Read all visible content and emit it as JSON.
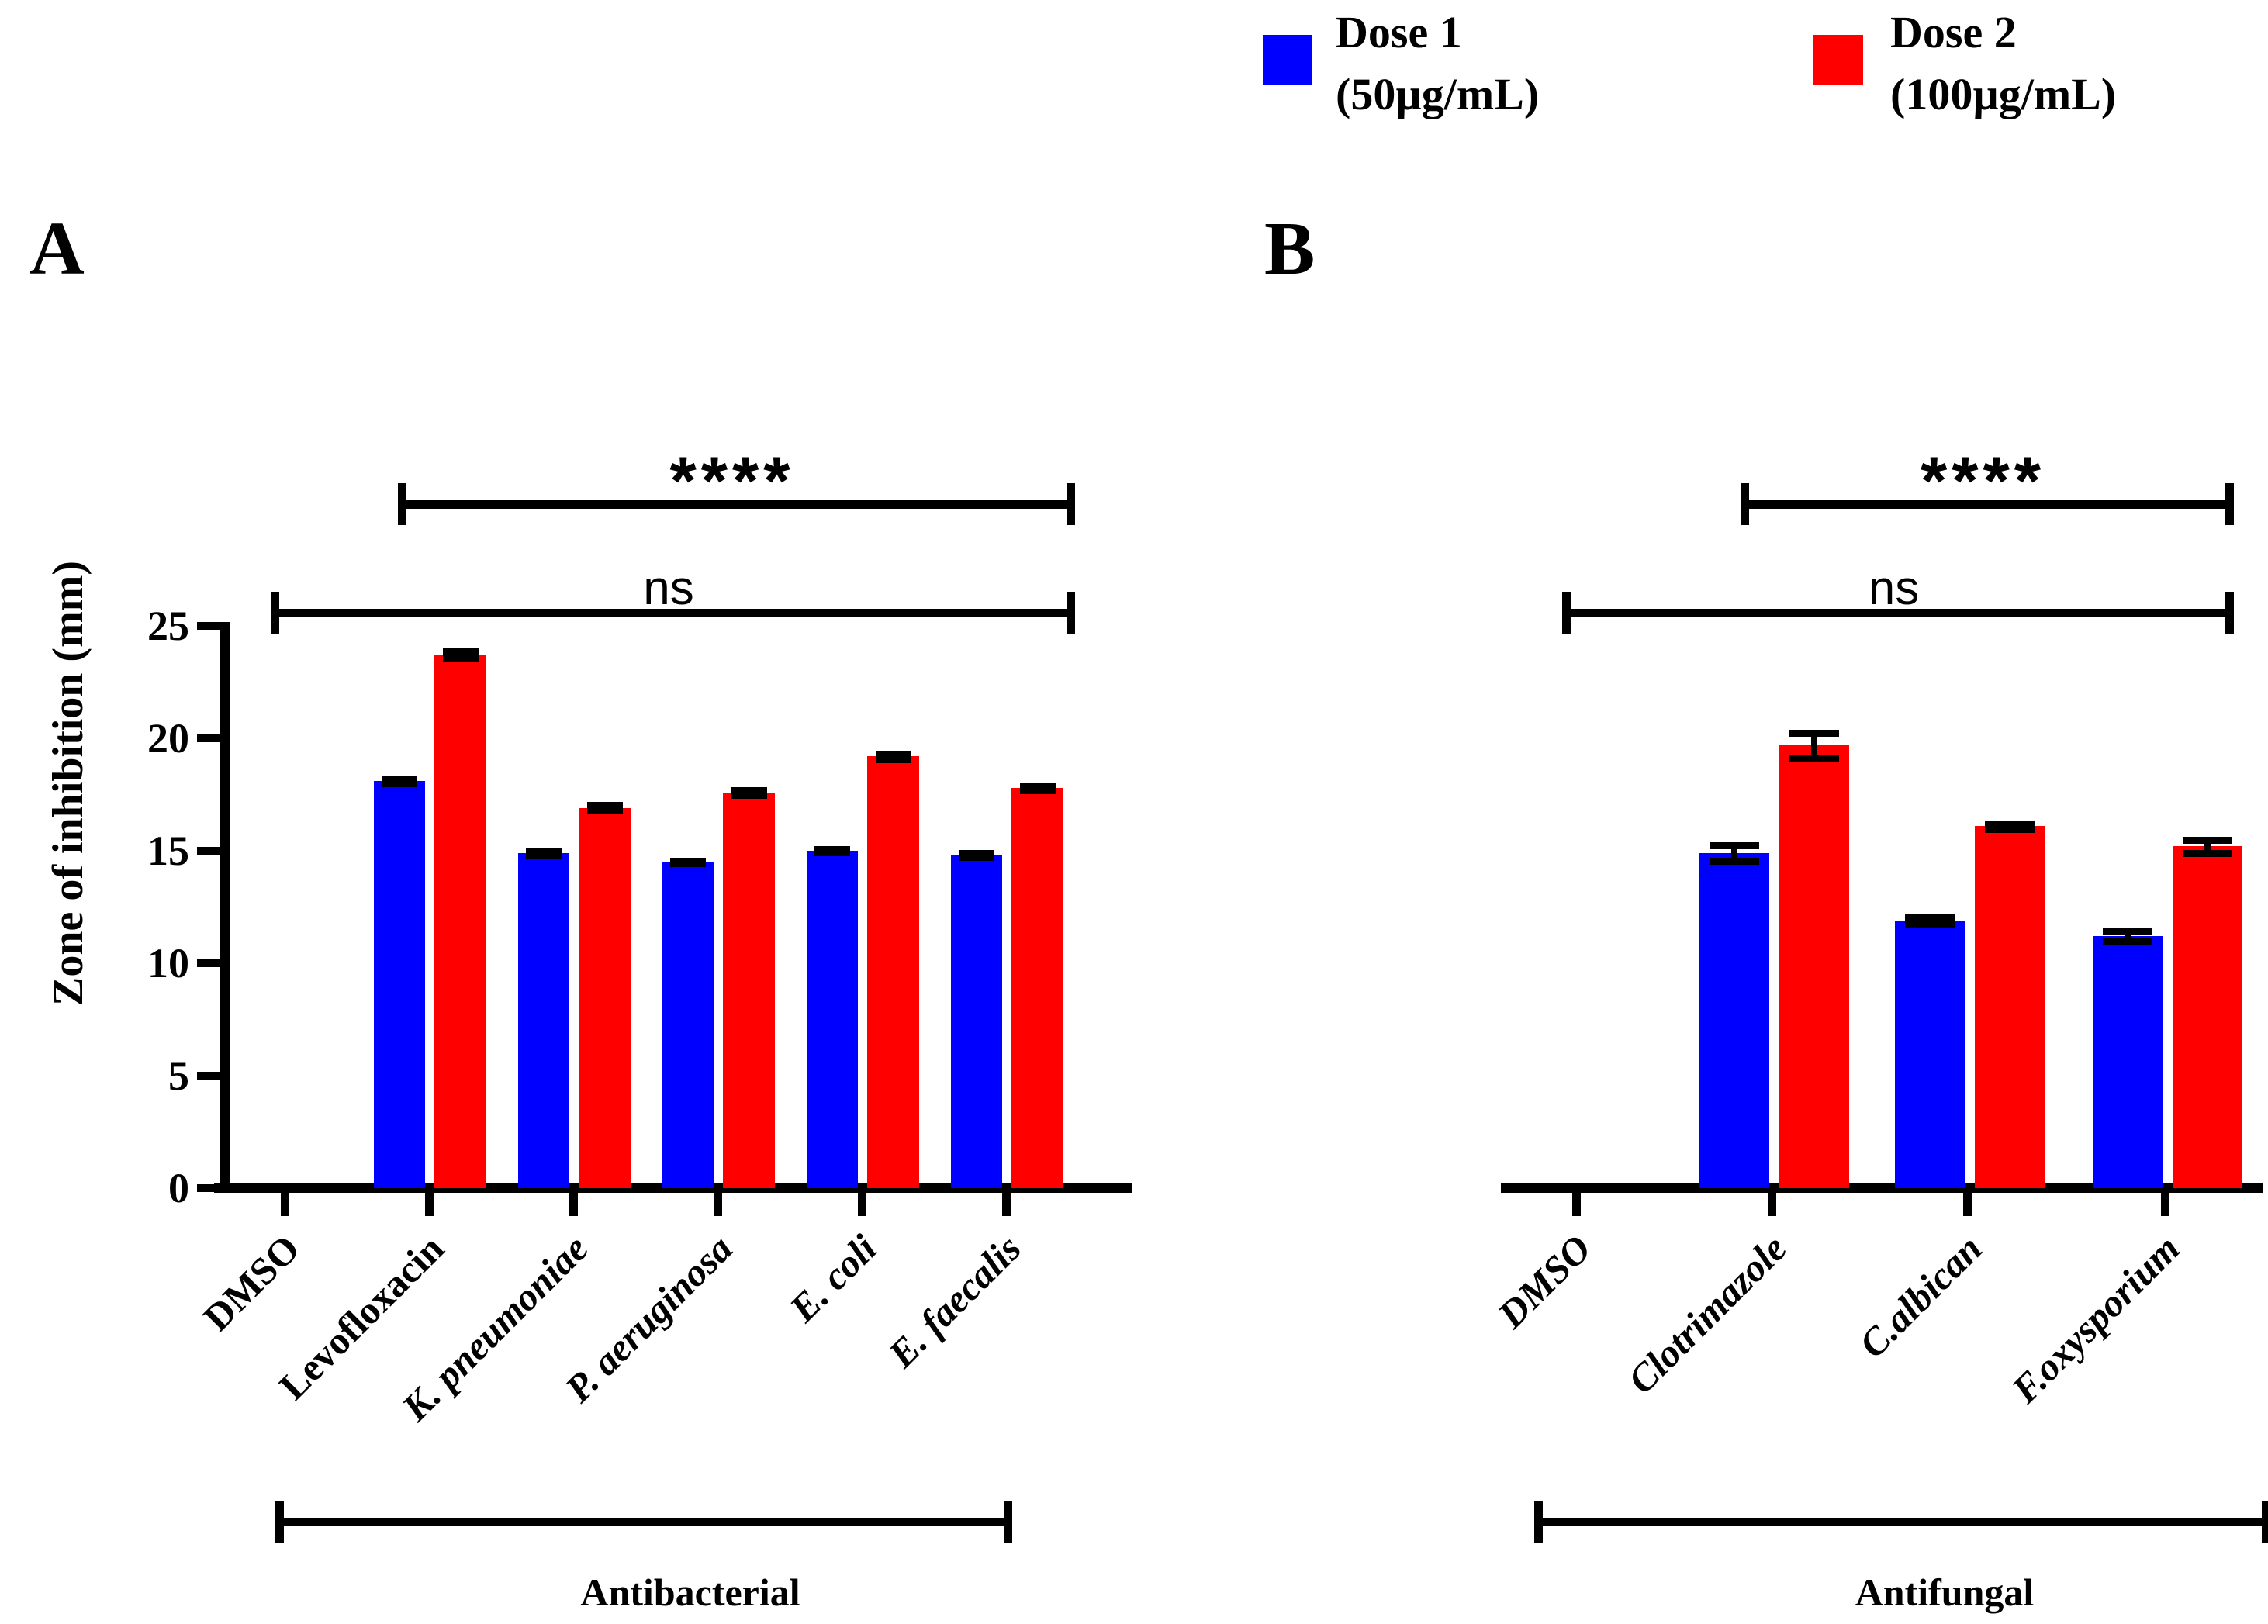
{
  "figure": {
    "background": "#ffffff",
    "axis_color": "#000000",
    "error_bar_color": "#000000"
  },
  "legend": {
    "items": [
      {
        "swatch_color": "#0000FF",
        "label_line1": "Dose 1",
        "label_line2": "(50µg/mL)"
      },
      {
        "swatch_color": "#FF0000",
        "label_line1": "Dose 2",
        "label_line2": "(100µg/mL)"
      }
    ]
  },
  "chart_data": [
    {
      "panel_label": "A",
      "type": "bar",
      "title": "",
      "xlabel": "",
      "ylabel": "Zone of inhibition (mm)",
      "ylim": [
        0,
        25
      ],
      "y_ticks": [
        0,
        5,
        10,
        15,
        20,
        25
      ],
      "y_axis_visible": true,
      "grid": false,
      "legend_position": "top",
      "categories": [
        {
          "label": "DMSO",
          "italic": false
        },
        {
          "label": "Levofloxacin",
          "italic": false
        },
        {
          "label": "K. pneumoniae",
          "italic": true
        },
        {
          "label": "P. aeruginosa",
          "italic": true
        },
        {
          "label": "E. coli",
          "italic": true
        },
        {
          "label": "E. faecalis",
          "italic": true
        }
      ],
      "series": [
        {
          "name": "Dose 1 (50µg/mL)",
          "color": "#0000FF",
          "values": [
            0,
            18.1,
            14.9,
            14.5,
            15.0,
            14.8
          ],
          "errors": [
            0,
            0.1,
            0.08,
            0.06,
            0.08,
            0.08
          ]
        },
        {
          "name": "Dose 2 (100µg/mL)",
          "color": "#FF0000",
          "values": [
            0,
            23.7,
            16.9,
            17.6,
            19.2,
            17.8
          ],
          "errors": [
            0,
            0.15,
            0.12,
            0.1,
            0.12,
            0.1
          ]
        }
      ],
      "significance": [
        {
          "label": "****",
          "from": 1,
          "to": 5
        },
        {
          "label": "ns",
          "from": 0,
          "to": 5
        }
      ],
      "group_label": "Antibacterial"
    },
    {
      "panel_label": "B",
      "type": "bar",
      "title": "",
      "xlabel": "",
      "ylabel": "",
      "ylim": [
        0,
        25
      ],
      "y_ticks": [],
      "y_axis_visible": false,
      "grid": false,
      "legend_position": "top",
      "categories": [
        {
          "label": "DMSO",
          "italic": true
        },
        {
          "label": "Clotrimazole",
          "italic": true
        },
        {
          "label": "C.albican",
          "italic": true
        },
        {
          "label": "F.oxysporium",
          "italic": true
        }
      ],
      "series": [
        {
          "name": "Dose 1 (50µg/mL)",
          "color": "#0000FF",
          "values": [
            0,
            14.9,
            11.9,
            11.2
          ],
          "errors": [
            0,
            0.35,
            0.15,
            0.25
          ]
        },
        {
          "name": "Dose 2 (100µg/mL)",
          "color": "#FF0000",
          "values": [
            0,
            19.7,
            16.1,
            15.2
          ],
          "errors": [
            0,
            0.55,
            0.12,
            0.3
          ]
        }
      ],
      "significance": [
        {
          "label": "****",
          "from": 1,
          "to": 3
        },
        {
          "label": "ns",
          "from": 0,
          "to": 3
        }
      ],
      "group_label": "Antifungal"
    }
  ]
}
